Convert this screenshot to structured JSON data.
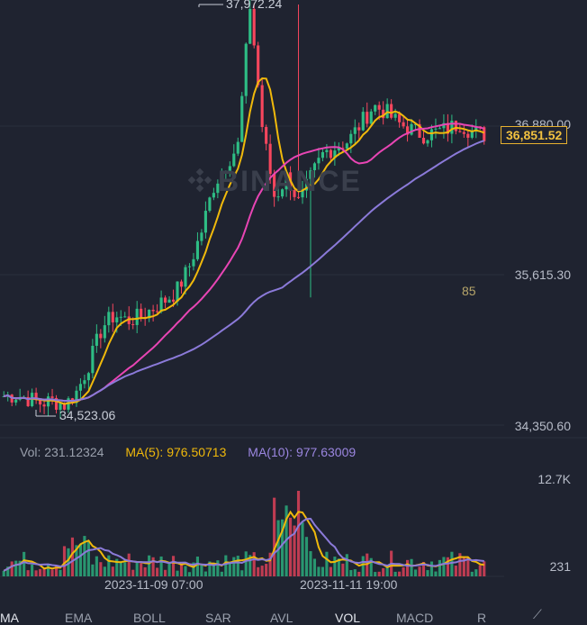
{
  "watermark": "BINANCE",
  "price_axis": {
    "tick_top": "36,880.00",
    "tick_mid": "35,615.30",
    "tick_bottom": "34,350.60",
    "current_price": "36,851.52"
  },
  "annotations": {
    "high_label": "37,972.24",
    "low_label": "34,523.06",
    "floating_label": "85"
  },
  "volume": {
    "vol_label": "Vol: 231.12324",
    "ma5_label": "MA(5): 976.50713",
    "ma10_label": "MA(10): 977.63009",
    "axis_top": "12.7K",
    "axis_bottom": "231"
  },
  "time_axis": {
    "label_1": "2023-11-09 07:00",
    "label_2": "2023-11-11 19:00"
  },
  "tabs": [
    "MA",
    "EMA",
    "BOLL",
    "SAR",
    "AVL",
    "VOL",
    "MACD",
    "R"
  ],
  "colors": {
    "up": "#2ebd85",
    "down": "#f6465d",
    "ma_fast": "#f0b90b",
    "ma_mid": "#e845b4",
    "ma_slow": "#8b7ad9",
    "vol_ma5": "#f0b90b",
    "vol_ma10": "#8b7ad9"
  },
  "chart_data": {
    "type": "candlestick",
    "price_close_series": [
      34600,
      34610,
      34580,
      34540,
      34560,
      34523,
      34650,
      34900,
      35200,
      35300,
      35250,
      35280,
      35350,
      35420,
      35500,
      35700,
      36000,
      36400,
      36600,
      36750,
      37972,
      36900,
      36300,
      36500,
      36250,
      36500,
      36700,
      36750,
      36800,
      36950,
      37100,
      37050,
      36950,
      36900,
      36850,
      36870,
      36900,
      36950,
      36880,
      36851
    ],
    "price_range": [
      34350.6,
      37972.24
    ],
    "high": 37972.24,
    "low": 34523.06,
    "last": 36851.52
  }
}
